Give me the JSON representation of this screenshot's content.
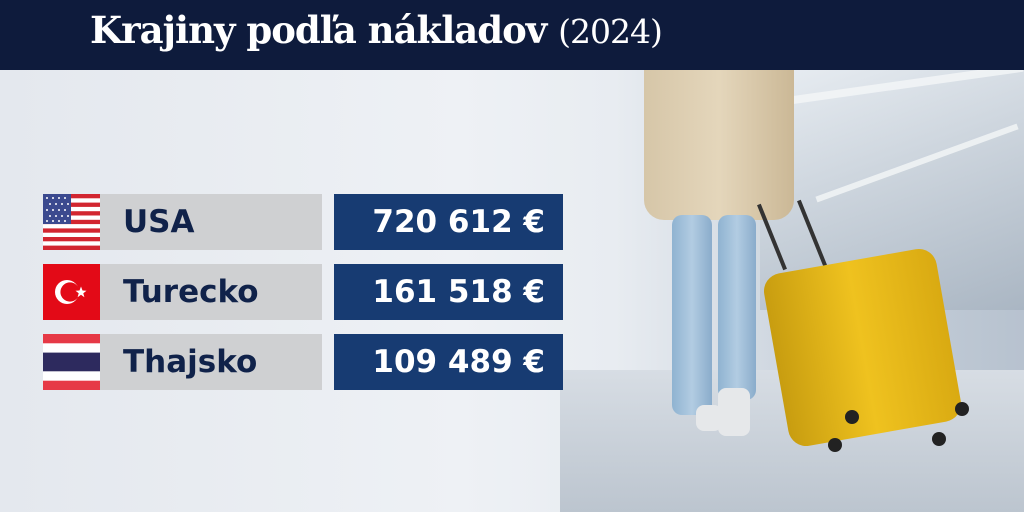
{
  "header": {
    "title": "Krajiny podľa nákladov",
    "year": "(2024)"
  },
  "rows": [
    {
      "country": "USA",
      "flag": "usa-flag-icon",
      "value": "720 612 €"
    },
    {
      "country": "Turecko",
      "flag": "turkey-flag-icon",
      "value": "161 518 €"
    },
    {
      "country": "Thajsko",
      "flag": "thailand-flag-icon",
      "value": "109 489 €"
    }
  ],
  "colors": {
    "header": "#0e1b3c",
    "value_box": "#173b72",
    "name_box": "#cfd0d2",
    "name_text": "#10224a"
  }
}
